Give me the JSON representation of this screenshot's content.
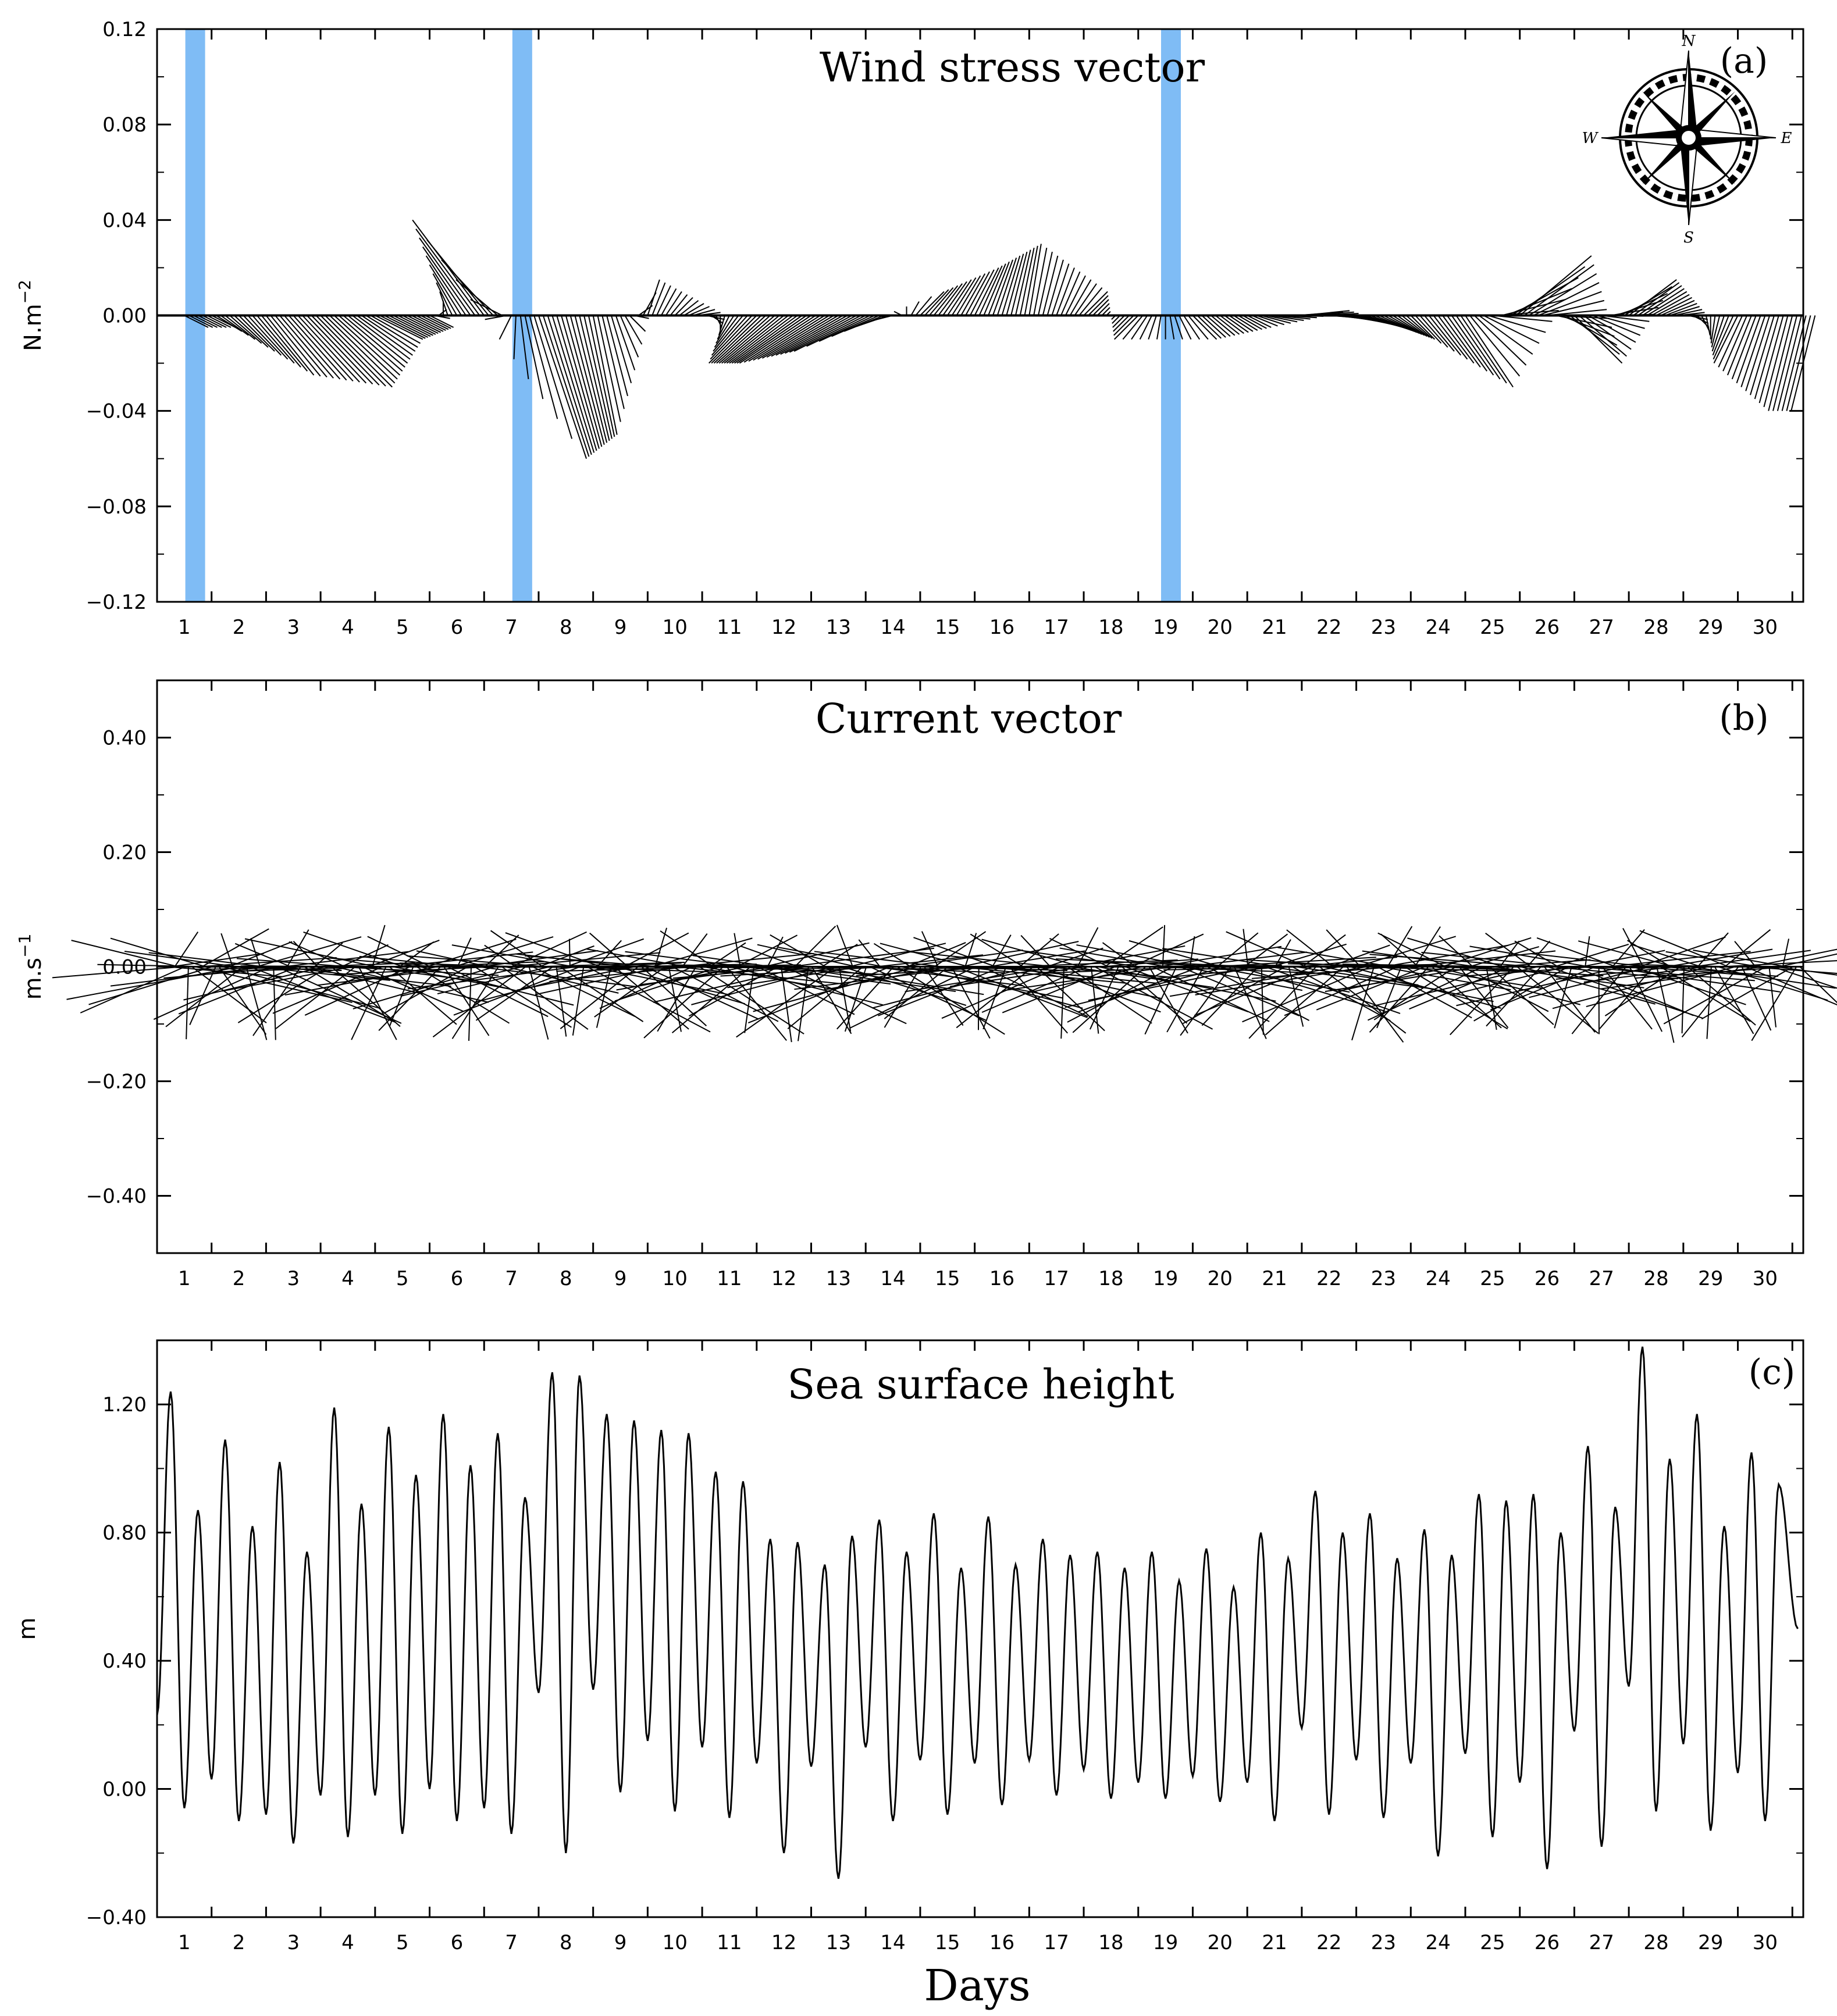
{
  "chart_data": [
    {
      "type": "vector",
      "panel": "(a)",
      "title": "Wind stress vector",
      "ylabel": "N.m",
      "ylabel_exp": "−2",
      "ylim": [
        -0.12,
        0.12
      ],
      "yticks": [
        "0.12",
        "0.08",
        "0.04",
        "0.00",
        "−0.04",
        "−0.08",
        "−0.12"
      ],
      "xticks": [
        "1",
        "2",
        "3",
        "4",
        "5",
        "6",
        "7",
        "8",
        "9",
        "10",
        "11",
        "12",
        "13",
        "14",
        "15",
        "16",
        "17",
        "18",
        "19",
        "20",
        "21",
        "22",
        "23",
        "24",
        "25",
        "26",
        "27",
        "28",
        "29",
        "30"
      ],
      "highlight_days": [
        0.7,
        6.7,
        18.6
      ],
      "highlight_color": "#7fbcf5",
      "compass": {
        "N": "N",
        "S": "S",
        "E": "E",
        "W": "W"
      },
      "day_components": [
        {
          "day": 1.0,
          "u": 0.01,
          "v": -0.005
        },
        {
          "day": 2.0,
          "u": 0.02,
          "v": -0.025
        },
        {
          "day": 3.0,
          "u": 0.03,
          "v": -0.03
        },
        {
          "day": 4.0,
          "u": 0.02,
          "v": -0.01
        },
        {
          "day": 5.0,
          "u": 0.01,
          "v": -0.005
        },
        {
          "day": 6.0,
          "u": -0.03,
          "v": 0.04
        },
        {
          "day": 7.0,
          "u": 0.02,
          "v": -0.06
        },
        {
          "day": 8.0,
          "u": 0.01,
          "v": -0.05
        },
        {
          "day": 9.0,
          "u": 0.005,
          "v": 0.015
        },
        {
          "day": 10.0,
          "u": 0.01,
          "v": 0.0
        },
        {
          "day": 11.0,
          "u": -0.02,
          "v": -0.02
        },
        {
          "day": 12.0,
          "u": -0.03,
          "v": -0.02
        },
        {
          "day": 13.0,
          "u": -0.03,
          "v": -0.015
        },
        {
          "day": 14.0,
          "u": 0.01,
          "v": 0.01
        },
        {
          "day": 15.0,
          "u": 0.01,
          "v": 0.02
        },
        {
          "day": 16.0,
          "u": 0.005,
          "v": 0.03
        },
        {
          "day": 17.0,
          "u": 0.01,
          "v": 0.01
        },
        {
          "day": 18.0,
          "u": -0.01,
          "v": -0.01
        },
        {
          "day": 19.0,
          "u": 0.01,
          "v": -0.01
        },
        {
          "day": 20.0,
          "u": 0.01,
          "v": -0.005
        },
        {
          "day": 21.0,
          "u": 0.02,
          "v": 0.002
        },
        {
          "day": 22.0,
          "u": 0.02,
          "v": -0.005
        },
        {
          "day": 23.0,
          "u": 0.01,
          "v": -0.01
        },
        {
          "day": 24.0,
          "u": 0.02,
          "v": -0.03
        },
        {
          "day": 25.0,
          "u": 0.03,
          "v": 0.025
        },
        {
          "day": 26.0,
          "u": 0.02,
          "v": -0.02
        },
        {
          "day": 27.0,
          "u": 0.02,
          "v": 0.015
        },
        {
          "day": 28.0,
          "u": 0.01,
          "v": 0.0
        },
        {
          "day": 29.0,
          "u": -0.01,
          "v": -0.02
        },
        {
          "day": 30.0,
          "u": -0.01,
          "v": -0.04
        }
      ]
    },
    {
      "type": "vector",
      "panel": "(b)",
      "title": "Current vector",
      "ylabel": "m.s",
      "ylabel_exp": "−1",
      "ylim": [
        -0.5,
        0.5
      ],
      "yticks": [
        "0.40",
        "0.20",
        "0.00",
        "−0.20",
        "−0.40"
      ],
      "xticks": [
        "1",
        "2",
        "3",
        "4",
        "5",
        "6",
        "7",
        "8",
        "9",
        "10",
        "11",
        "12",
        "13",
        "14",
        "15",
        "16",
        "17",
        "18",
        "19",
        "20",
        "21",
        "22",
        "23",
        "24",
        "25",
        "26",
        "27",
        "28",
        "29",
        "30"
      ]
    },
    {
      "type": "line",
      "panel": "(c)",
      "title": "Sea surface height",
      "ylabel": "m",
      "xlabel": "Days",
      "ylim": [
        -0.4,
        1.4
      ],
      "yticks": [
        "1.20",
        "0.80",
        "0.40",
        "0.00",
        "−0.40"
      ],
      "xticks": [
        "1",
        "2",
        "3",
        "4",
        "5",
        "6",
        "7",
        "8",
        "9",
        "10",
        "11",
        "12",
        "13",
        "14",
        "15",
        "16",
        "17",
        "18",
        "19",
        "20",
        "21",
        "22",
        "23",
        "24",
        "25",
        "26",
        "27",
        "28",
        "29",
        "30"
      ],
      "daily_max": [
        1.24,
        1.09,
        1.02,
        1.19,
        1.13,
        1.17,
        1.11,
        1.3,
        1.17,
        1.12,
        0.99,
        0.78,
        0.7,
        0.84,
        0.86,
        0.85,
        0.78,
        0.74,
        0.74,
        0.75,
        0.8,
        0.93,
        0.86,
        0.81,
        0.92,
        0.92,
        1.07,
        1.38,
        1.17,
        1.05
      ],
      "daily_min": [
        -0.06,
        -0.1,
        -0.17,
        -0.15,
        -0.14,
        -0.1,
        -0.14,
        -0.2,
        -0.01,
        -0.07,
        -0.09,
        -0.2,
        -0.28,
        -0.1,
        -0.08,
        -0.05,
        -0.02,
        -0.03,
        -0.03,
        -0.04,
        -0.1,
        -0.08,
        -0.09,
        -0.21,
        -0.15,
        -0.25,
        -0.18,
        -0.07,
        -0.13,
        -0.1
      ],
      "daily_second_max": [
        0.87,
        0.82,
        0.74,
        0.89,
        0.98,
        1.01,
        0.91,
        1.29,
        1.15,
        1.11,
        0.96,
        0.77,
        0.79,
        0.74,
        0.69,
        0.7,
        0.73,
        0.69,
        0.65,
        0.63,
        0.72,
        0.8,
        0.72,
        0.73,
        0.9,
        0.8,
        0.88,
        1.03,
        0.82,
        0.95
      ],
      "daily_second_min": [
        0.23,
        0.03,
        -0.08,
        -0.02,
        -0.02,
        0.0,
        -0.06,
        0.3,
        0.31,
        0.15,
        0.13,
        0.08,
        0.07,
        0.13,
        0.09,
        0.08,
        0.09,
        0.06,
        0.02,
        0.04,
        0.02,
        0.19,
        0.09,
        0.08,
        0.11,
        0.02,
        0.18,
        0.32,
        0.14,
        0.05
      ]
    }
  ]
}
